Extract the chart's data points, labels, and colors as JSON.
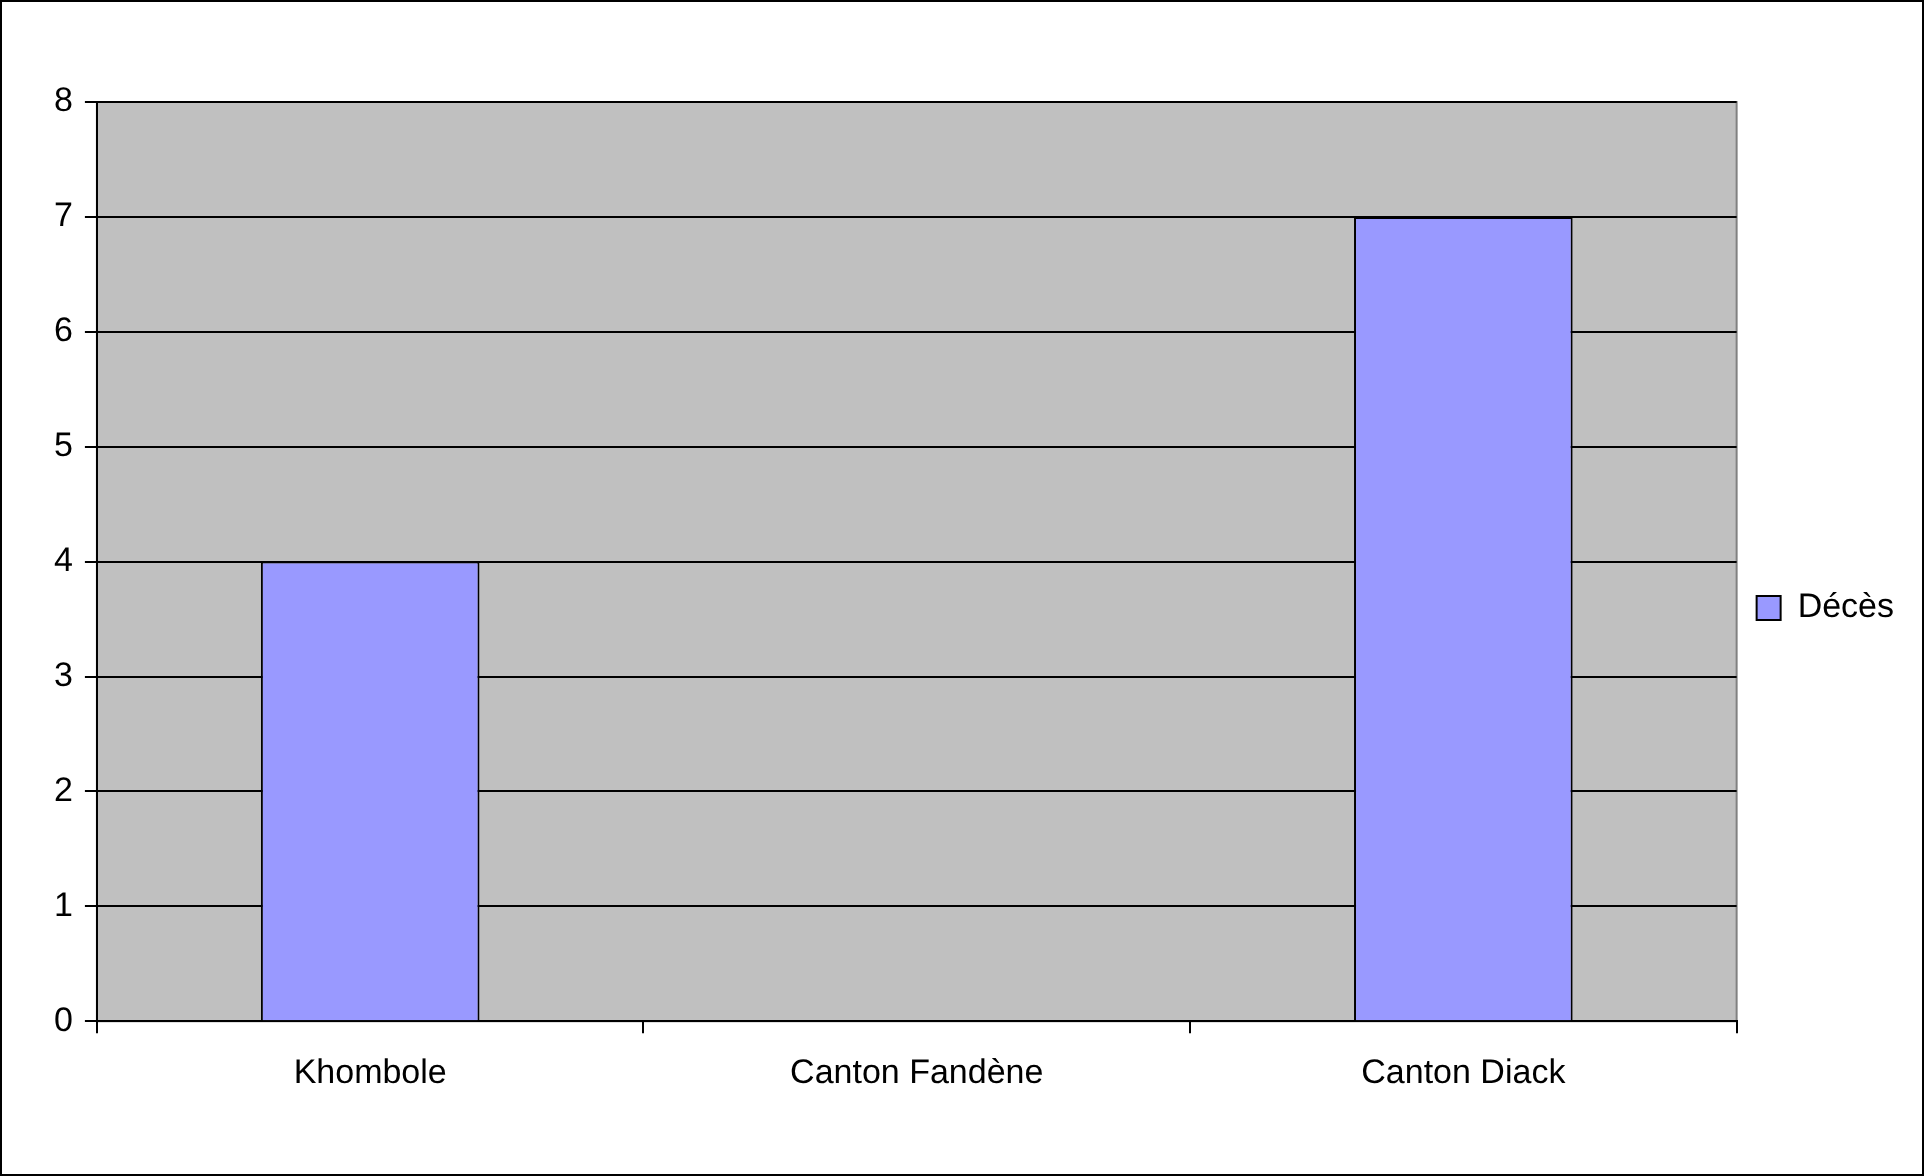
{
  "chart_data": {
    "type": "bar",
    "categories": [
      "Khombole",
      "Canton Fandène",
      "Canton Diack"
    ],
    "series": [
      {
        "name": "Décès",
        "color": "#9999ff",
        "values": [
          4,
          0,
          7
        ]
      }
    ],
    "ylim": [
      0,
      8
    ],
    "yticks": [
      0,
      1,
      2,
      3,
      4,
      5,
      6,
      7,
      8
    ],
    "grid": "y",
    "legend": "right"
  }
}
